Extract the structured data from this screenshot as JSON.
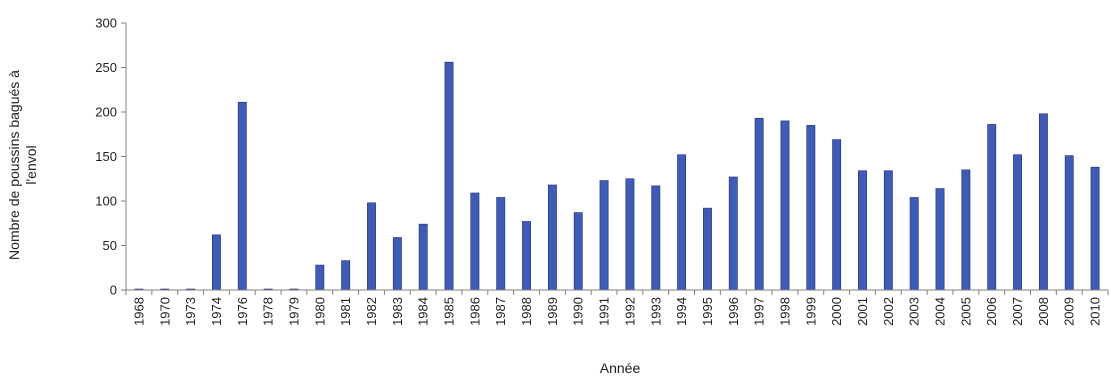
{
  "chart_data": {
    "type": "bar",
    "title": "",
    "xlabel": "Année",
    "ylabel_lines": [
      "Nombre de poussins bagués à",
      "l'envol"
    ],
    "ylim": [
      0,
      300
    ],
    "yticks": [
      0,
      50,
      100,
      150,
      200,
      250,
      300
    ],
    "grid": false,
    "legend": "none",
    "bar_color": "#3F5BB5",
    "bar_edge_color": "#1F2F7A",
    "axis_color": "#808080",
    "categories": [
      "1968",
      "1970",
      "1973",
      "1974",
      "1976",
      "1978",
      "1979",
      "1980",
      "1981",
      "1982",
      "1983",
      "1984",
      "1985",
      "1986",
      "1987",
      "1988",
      "1989",
      "1990",
      "1991",
      "1992",
      "1993",
      "1994",
      "1995",
      "1996",
      "1997",
      "1998",
      "1999",
      "2000",
      "2001",
      "2002",
      "2003",
      "2004",
      "2005",
      "2006",
      "2007",
      "2008",
      "2009",
      "2010"
    ],
    "values": [
      0,
      1,
      1,
      62,
      211,
      0,
      0,
      28,
      33,
      98,
      59,
      74,
      256,
      109,
      104,
      77,
      118,
      87,
      123,
      125,
      117,
      152,
      92,
      127,
      193,
      190,
      185,
      169,
      134,
      134,
      104,
      114,
      135,
      186,
      152,
      198,
      151,
      138
    ]
  }
}
